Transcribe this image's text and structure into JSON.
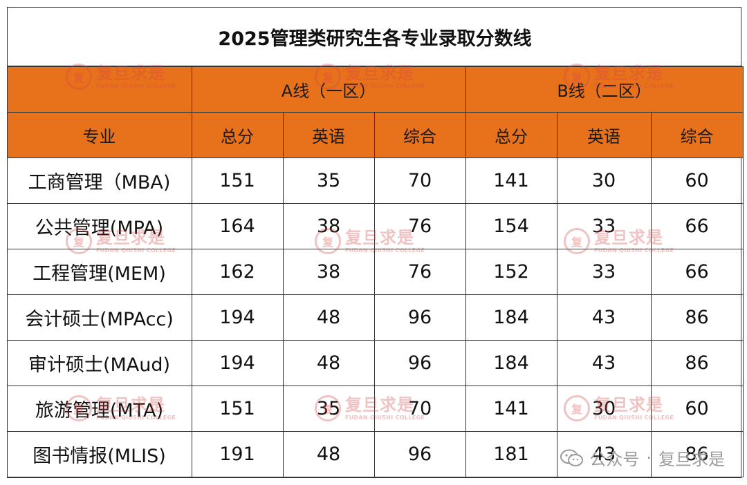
{
  "title": "2025管理类研究生各专业录取分数线",
  "group_headers": {
    "a": "A线（一区）",
    "b": "B线（二区）"
  },
  "column_headers": {
    "major": "专业",
    "a_total": "总分",
    "a_english": "英语",
    "a_comprehensive": "综合",
    "b_total": "总分",
    "b_english": "英语",
    "b_comprehensive": "综合"
  },
  "rows": [
    {
      "major": "工商管理（MBA)",
      "a_total": "151",
      "a_english": "35",
      "a_comprehensive": "70",
      "b_total": "141",
      "b_english": "30",
      "b_comprehensive": "60"
    },
    {
      "major": "公共管理(MPA)",
      "a_total": "164",
      "a_english": "38",
      "a_comprehensive": "76",
      "b_total": "154",
      "b_english": "33",
      "b_comprehensive": "66"
    },
    {
      "major": "工程管理(MEM)",
      "a_total": "162",
      "a_english": "38",
      "a_comprehensive": "76",
      "b_total": "152",
      "b_english": "33",
      "b_comprehensive": "66"
    },
    {
      "major": "会计硕士(MPAcc)",
      "a_total": "194",
      "a_english": "48",
      "a_comprehensive": "96",
      "b_total": "184",
      "b_english": "43",
      "b_comprehensive": "86"
    },
    {
      "major": "审计硕士(MAud)",
      "a_total": "194",
      "a_english": "48",
      "a_comprehensive": "96",
      "b_total": "184",
      "b_english": "43",
      "b_comprehensive": "86"
    },
    {
      "major": "旅游管理(MTA)",
      "a_total": "151",
      "a_english": "35",
      "a_comprehensive": "70",
      "b_total": "141",
      "b_english": "30",
      "b_comprehensive": "60"
    },
    {
      "major": "图书情报(MLIS)",
      "a_total": "191",
      "a_english": "48",
      "a_comprehensive": "96",
      "b_total": "181",
      "b_english": "43",
      "b_comprehensive": "86"
    }
  ],
  "watermark": {
    "seal_char": "复",
    "cn": "复旦求是",
    "en": "FUDAN QIUSHI COLLEGE"
  },
  "footer": {
    "icon": "wechat-icon",
    "label": "公众号",
    "separator": "·",
    "account": "复旦求是"
  },
  "colors": {
    "header_bg": "#e8711b",
    "watermark": "#d64545",
    "border": "#333333"
  }
}
